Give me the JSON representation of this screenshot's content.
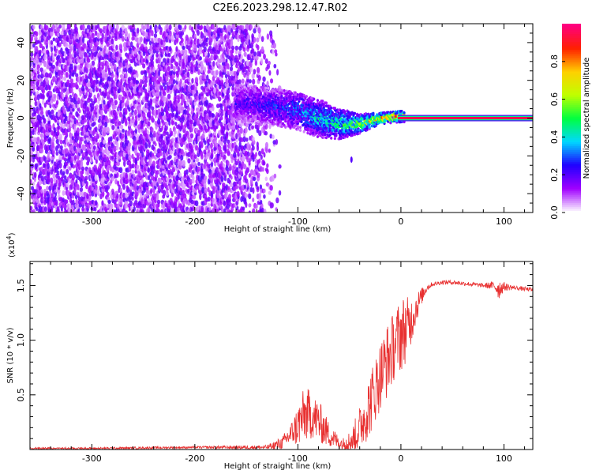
{
  "title": "C2E6.2023.298.12.47.R02",
  "chart_data": [
    {
      "type": "heatmap",
      "name": "spectrogram",
      "xlabel": "Height of straight line (km)",
      "ylabel": "Frequency (Hz)",
      "xlim": [
        -360,
        128
      ],
      "ylim": [
        -50,
        50
      ],
      "xticks": [
        -300,
        -200,
        -100,
        0,
        100
      ],
      "xtick_labels": [
        "-300",
        "-200",
        "-100",
        "0",
        "100"
      ],
      "yticks": [
        -40,
        -20,
        0,
        20,
        40
      ],
      "ytick_labels": [
        "-40",
        "-20",
        "0",
        "20",
        "40"
      ],
      "noise_region": {
        "x_from": -360,
        "x_to": -130,
        "freq_range": [
          -50,
          48
        ],
        "level": 0.15
      },
      "transition_band": [
        {
          "x": -150,
          "f": 8,
          "width": 10,
          "level": 0.2
        },
        {
          "x": -120,
          "f": 6,
          "width": 10,
          "level": 0.25
        },
        {
          "x": -100,
          "f": 4,
          "width": 10,
          "level": 0.3
        },
        {
          "x": -80,
          "f": 0,
          "width": 10,
          "level": 0.38
        },
        {
          "x": -60,
          "f": -3,
          "width": 8,
          "level": 0.45
        },
        {
          "x": -40,
          "f": -3,
          "width": 5,
          "level": 0.55
        },
        {
          "x": -20,
          "f": 0,
          "width": 3,
          "level": 0.7
        },
        {
          "x": 0,
          "f": 1,
          "width": 3,
          "level": 0.75
        }
      ],
      "tone": {
        "x_from": 0,
        "x_to": 128,
        "frequency": 0,
        "level": 0.95
      },
      "colorbar": {
        "label": "Normalized spectral amplitude",
        "range": [
          0,
          1
        ],
        "ticks": [
          0.0,
          0.2,
          0.4,
          0.6,
          0.8
        ],
        "tick_labels": [
          "0.0",
          "0.2",
          "0.4",
          "0.6",
          "0.8"
        ],
        "colors": [
          "#ffffff",
          "#a000ff",
          "#2000ff",
          "#00d8ff",
          "#00ff40",
          "#c0ff00",
          "#ffd000",
          "#ff2000",
          "#ff0080"
        ]
      }
    },
    {
      "type": "line",
      "name": "snr",
      "xlabel": "Height of straight line (km)",
      "ylabel": "SNR (10 * v/v)",
      "scale_label": "(x10",
      "scale_exp": "4",
      "scale_close": ")",
      "xlim": [
        -360,
        128
      ],
      "ylim": [
        0,
        1.72
      ],
      "xticks": [
        -300,
        -200,
        -100,
        0,
        100
      ],
      "xtick_labels": [
        "-300",
        "-200",
        "-100",
        "0",
        "100"
      ],
      "yticks": [
        0.5,
        1.0,
        1.5
      ],
      "ytick_labels": [
        "0.5",
        "1.0",
        "1.5"
      ],
      "color": "#e83030",
      "x": [
        -360,
        -300,
        -200,
        -130,
        -115,
        -105,
        -100,
        -95,
        -90,
        -85,
        -80,
        -75,
        -70,
        -60,
        -55,
        -50,
        -45,
        -40,
        -35,
        -30,
        -25,
        -20,
        -15,
        -10,
        -5,
        0,
        5,
        10,
        15,
        20,
        25,
        30,
        40,
        50,
        60,
        70,
        80,
        90,
        95,
        100,
        110,
        128
      ],
      "y": [
        0.01,
        0.01,
        0.02,
        0.02,
        0.06,
        0.16,
        0.22,
        0.3,
        0.32,
        0.3,
        0.26,
        0.2,
        0.14,
        0.06,
        0.05,
        0.07,
        0.12,
        0.2,
        0.3,
        0.42,
        0.55,
        0.68,
        0.78,
        0.88,
        0.98,
        1.06,
        1.1,
        1.18,
        1.3,
        1.4,
        1.48,
        1.51,
        1.53,
        1.53,
        1.52,
        1.51,
        1.5,
        1.5,
        1.47,
        1.49,
        1.48,
        1.46
      ],
      "noise_envelope": [
        0.01,
        0.01,
        0.01,
        0.02,
        0.06,
        0.12,
        0.2,
        0.24,
        0.24,
        0.2,
        0.2,
        0.16,
        0.12,
        0.06,
        0.06,
        0.1,
        0.15,
        0.2,
        0.25,
        0.3,
        0.3,
        0.32,
        0.34,
        0.34,
        0.3,
        0.36,
        0.3,
        0.22,
        0.14,
        0.08,
        0.04,
        0.02,
        0.02,
        0.02,
        0.02,
        0.02,
        0.02,
        0.04,
        0.1,
        0.04,
        0.02,
        0.02
      ]
    }
  ]
}
